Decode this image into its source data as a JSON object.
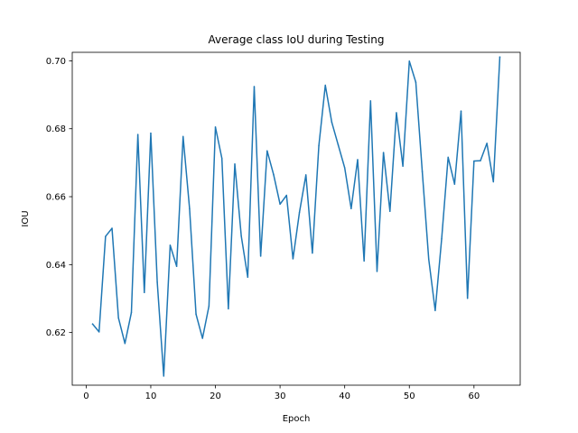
{
  "chart_data": {
    "type": "line",
    "title": "Average class IoU during Testing",
    "xlabel": "Epoch",
    "ylabel": "IOU",
    "xlim": [
      -2.15,
      67.15
    ],
    "ylim": [
      0.6045,
      0.7025
    ],
    "xticks": [
      0,
      10,
      20,
      30,
      40,
      50,
      60
    ],
    "yticks": [
      0.62,
      0.64,
      0.66,
      0.68,
      0.7
    ],
    "ytick_labels": [
      "0.62",
      "0.64",
      "0.66",
      "0.68",
      "0.70"
    ],
    "grid": false,
    "series": [
      {
        "color": "#1f77b4",
        "x": [
          1,
          2,
          3,
          4,
          5,
          6,
          7,
          8,
          9,
          10,
          11,
          12,
          13,
          14,
          15,
          16,
          17,
          18,
          19,
          20,
          21,
          22,
          23,
          24,
          25,
          26,
          27,
          28,
          29,
          30,
          31,
          32,
          33,
          34,
          35,
          36,
          37,
          38,
          39,
          40,
          41,
          42,
          43,
          44,
          45,
          46,
          47,
          48,
          49,
          50,
          51,
          52,
          53,
          54,
          55,
          56,
          57,
          58,
          59,
          60,
          61,
          62,
          63,
          64
        ],
        "y": [
          0.6225,
          0.6202,
          0.6483,
          0.6507,
          0.6243,
          0.6168,
          0.6259,
          0.6783,
          0.6318,
          0.6787,
          0.6348,
          0.6072,
          0.6457,
          0.6395,
          0.6777,
          0.6565,
          0.6254,
          0.6183,
          0.6278,
          0.6805,
          0.6713,
          0.627,
          0.6696,
          0.6484,
          0.6363,
          0.6924,
          0.6425,
          0.6735,
          0.6665,
          0.6578,
          0.6604,
          0.6417,
          0.6554,
          0.6664,
          0.6434,
          0.675,
          0.6928,
          0.6819,
          0.6752,
          0.6685,
          0.6565,
          0.6709,
          0.6411,
          0.6882,
          0.638,
          0.673,
          0.6557,
          0.6847,
          0.669,
          0.6999,
          0.6937,
          0.6674,
          0.6416,
          0.6265,
          0.6476,
          0.6716,
          0.6637,
          0.6852,
          0.6301,
          0.6705,
          0.6706,
          0.6757,
          0.6644,
          0.7011
        ]
      }
    ]
  }
}
